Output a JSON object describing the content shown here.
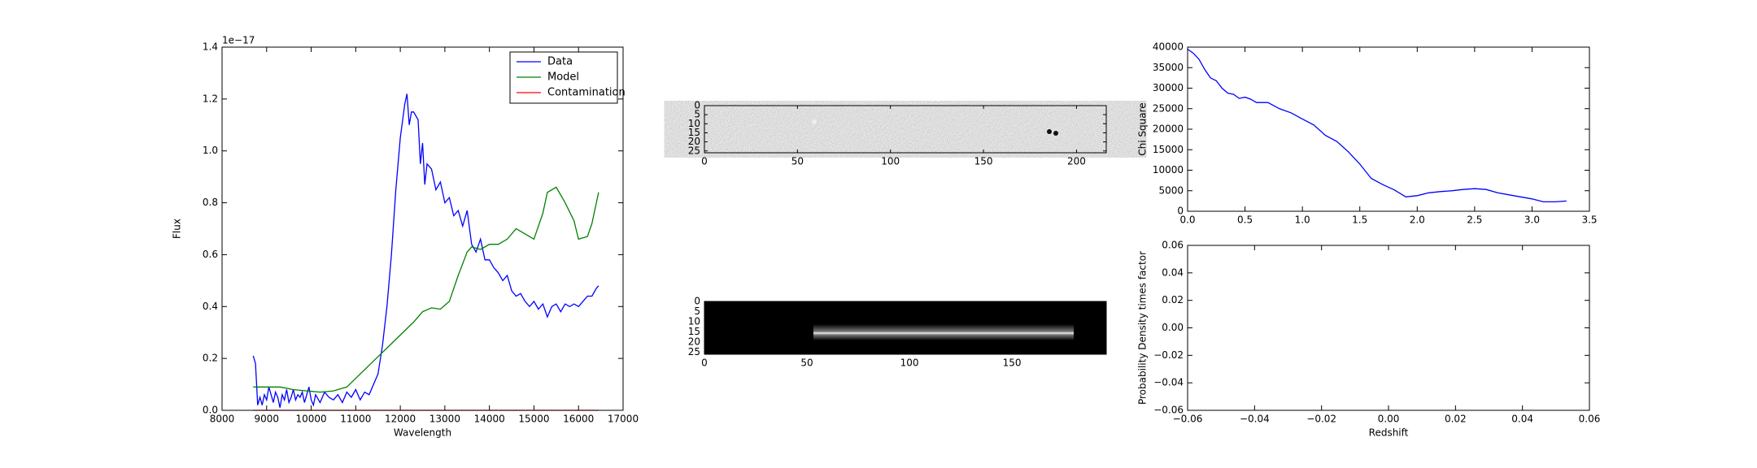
{
  "chart_data": [
    {
      "type": "line",
      "xlabel": "Wavelength",
      "ylabel": "Flux",
      "offset_label": "1e−17",
      "xlim": [
        8000,
        17000
      ],
      "xticks": [
        8000,
        9000,
        10000,
        11000,
        12000,
        13000,
        14000,
        15000,
        16000,
        17000
      ],
      "ylim": [
        0,
        1.4
      ],
      "yticks": [
        {
          "value": 0,
          "label": "0.0"
        },
        {
          "value": 0.2,
          "label": "0.2"
        },
        {
          "value": 0.4,
          "label": "0.4"
        },
        {
          "value": 0.6,
          "label": "0.6"
        },
        {
          "value": 0.8,
          "label": "0.8"
        },
        {
          "value": 1.0,
          "label": "1.0"
        },
        {
          "value": 1.2,
          "label": "1.2"
        },
        {
          "value": 1.4,
          "label": "1.4"
        }
      ],
      "legend": "upper right",
      "series": [
        {
          "name": "Data",
          "color": "#0000ff",
          "x": [
            8700,
            8750,
            8800,
            8850,
            8900,
            8950,
            9000,
            9050,
            9100,
            9150,
            9200,
            9250,
            9300,
            9350,
            9400,
            9450,
            9500,
            9550,
            9600,
            9650,
            9700,
            9750,
            9800,
            9850,
            9900,
            9950,
            10000,
            10050,
            10100,
            10200,
            10300,
            10400,
            10500,
            10600,
            10700,
            10800,
            10900,
            11000,
            11100,
            11200,
            11300,
            11400,
            11500,
            11600,
            11700,
            11800,
            11900,
            12000,
            12100,
            12150,
            12200,
            12250,
            12300,
            12400,
            12450,
            12500,
            12550,
            12600,
            12700,
            12800,
            12900,
            13000,
            13100,
            13200,
            13300,
            13400,
            13500,
            13600,
            13700,
            13800,
            13900,
            14000,
            14100,
            14200,
            14300,
            14400,
            14500,
            14600,
            14700,
            14800,
            14900,
            15000,
            15100,
            15200,
            15300,
            15400,
            15500,
            15600,
            15700,
            15800,
            15900,
            16000,
            16100,
            16200,
            16300,
            16400,
            16450
          ],
          "values": [
            0.21,
            0.18,
            0.02,
            0.05,
            0.02,
            0.06,
            0.04,
            0.09,
            0.06,
            0.03,
            0.07,
            0.05,
            0.01,
            0.06,
            0.04,
            0.08,
            0.03,
            0.05,
            0.08,
            0.04,
            0.06,
            0.05,
            0.07,
            0.03,
            0.06,
            0.09,
            0.04,
            0.02,
            0.06,
            0.03,
            0.07,
            0.05,
            0.04,
            0.06,
            0.03,
            0.07,
            0.05,
            0.08,
            0.04,
            0.07,
            0.06,
            0.1,
            0.14,
            0.25,
            0.4,
            0.6,
            0.85,
            1.05,
            1.18,
            1.22,
            1.1,
            1.15,
            1.15,
            1.12,
            0.95,
            1.03,
            0.87,
            0.95,
            0.93,
            0.85,
            0.88,
            0.8,
            0.82,
            0.75,
            0.77,
            0.71,
            0.77,
            0.64,
            0.61,
            0.66,
            0.58,
            0.58,
            0.55,
            0.53,
            0.5,
            0.52,
            0.46,
            0.44,
            0.45,
            0.42,
            0.4,
            0.42,
            0.39,
            0.41,
            0.36,
            0.4,
            0.41,
            0.38,
            0.41,
            0.4,
            0.41,
            0.4,
            0.42,
            0.44,
            0.44,
            0.47,
            0.48
          ]
        },
        {
          "name": "Model",
          "color": "#008000",
          "x": [
            8700,
            9000,
            9300,
            9600,
            9900,
            10200,
            10500,
            10800,
            11100,
            11400,
            11700,
            12000,
            12300,
            12500,
            12700,
            12900,
            13100,
            13300,
            13500,
            13600,
            13800,
            14000,
            14200,
            14400,
            14600,
            14800,
            15000,
            15200,
            15300,
            15500,
            15700,
            15900,
            16000,
            16200,
            16300,
            16450
          ],
          "values": [
            0.09,
            0.09,
            0.09,
            0.08,
            0.075,
            0.07,
            0.075,
            0.09,
            0.14,
            0.19,
            0.24,
            0.29,
            0.34,
            0.38,
            0.395,
            0.39,
            0.42,
            0.52,
            0.61,
            0.63,
            0.62,
            0.64,
            0.64,
            0.66,
            0.7,
            0.68,
            0.66,
            0.76,
            0.84,
            0.86,
            0.8,
            0.73,
            0.66,
            0.67,
            0.72,
            0.84
          ]
        },
        {
          "name": "Contamination",
          "color": "#ff0000",
          "x": [
            8700,
            16450
          ],
          "values": [
            0,
            0
          ]
        }
      ]
    },
    {
      "type": "image",
      "xlim": [
        0,
        216
      ],
      "xticks": [
        0,
        50,
        100,
        150,
        200
      ],
      "ylim": [
        26,
        0
      ],
      "yticks": [
        0,
        5,
        10,
        15,
        20,
        25
      ]
    },
    {
      "type": "image",
      "xlim": [
        0,
        196
      ],
      "xticks": [
        0,
        50,
        100,
        150
      ],
      "ylim": [
        26,
        0
      ],
      "yticks": [
        0,
        5,
        10,
        15,
        20,
        25
      ]
    },
    {
      "type": "line",
      "ylabel": "Chi Square",
      "xlim": [
        0,
        3.5
      ],
      "xticks": [
        {
          "value": 0,
          "label": "0.0"
        },
        0.5,
        {
          "value": 1,
          "label": "1.0"
        },
        1.5,
        {
          "value": 2,
          "label": "2.0"
        },
        2.5,
        {
          "value": 3,
          "label": "3.0"
        },
        3.5
      ],
      "ylim": [
        0,
        40000
      ],
      "yticks": [
        0,
        5000,
        10000,
        15000,
        20000,
        25000,
        30000,
        35000,
        40000
      ],
      "series": [
        {
          "color": "#0000ff",
          "x": [
            0,
            0.05,
            0.1,
            0.15,
            0.2,
            0.25,
            0.3,
            0.35,
            0.4,
            0.45,
            0.5,
            0.55,
            0.6,
            0.7,
            0.8,
            0.9,
            1.0,
            1.1,
            1.2,
            1.3,
            1.4,
            1.5,
            1.6,
            1.7,
            1.8,
            1.9,
            2.0,
            2.1,
            2.2,
            2.3,
            2.4,
            2.5,
            2.6,
            2.7,
            2.8,
            2.9,
            3.0,
            3.1,
            3.2,
            3.3
          ],
          "values": [
            39500,
            38500,
            37000,
            34500,
            32500,
            31800,
            30000,
            28800,
            28500,
            27500,
            27800,
            27300,
            26500,
            26500,
            25000,
            24000,
            22500,
            21000,
            18500,
            17000,
            14500,
            11500,
            8000,
            6500,
            5200,
            3500,
            3800,
            4500,
            4800,
            5000,
            5300,
            5500,
            5300,
            4500,
            4000,
            3500,
            3000,
            2300,
            2300,
            2500
          ]
        }
      ]
    },
    {
      "type": "line",
      "xlabel": "Redshift",
      "ylabel": "Probability Density times factor",
      "xlim": [
        -0.06,
        0.06
      ],
      "xticks": [
        {
          "value": -0.06,
          "label": "−0.06"
        },
        {
          "value": -0.04,
          "label": "−0.04"
        },
        {
          "value": -0.02,
          "label": "−0.02"
        },
        {
          "value": 0,
          "label": "0.00"
        },
        0.02,
        0.04,
        0.06
      ],
      "ylim": [
        -0.06,
        0.06
      ],
      "yticks": [
        {
          "value": -0.06,
          "label": "−0.06"
        },
        {
          "value": -0.04,
          "label": "−0.04"
        },
        {
          "value": -0.02,
          "label": "−0.02"
        },
        {
          "value": 0,
          "label": "0.00"
        },
        0.02,
        0.04,
        0.06
      ],
      "series": []
    }
  ]
}
